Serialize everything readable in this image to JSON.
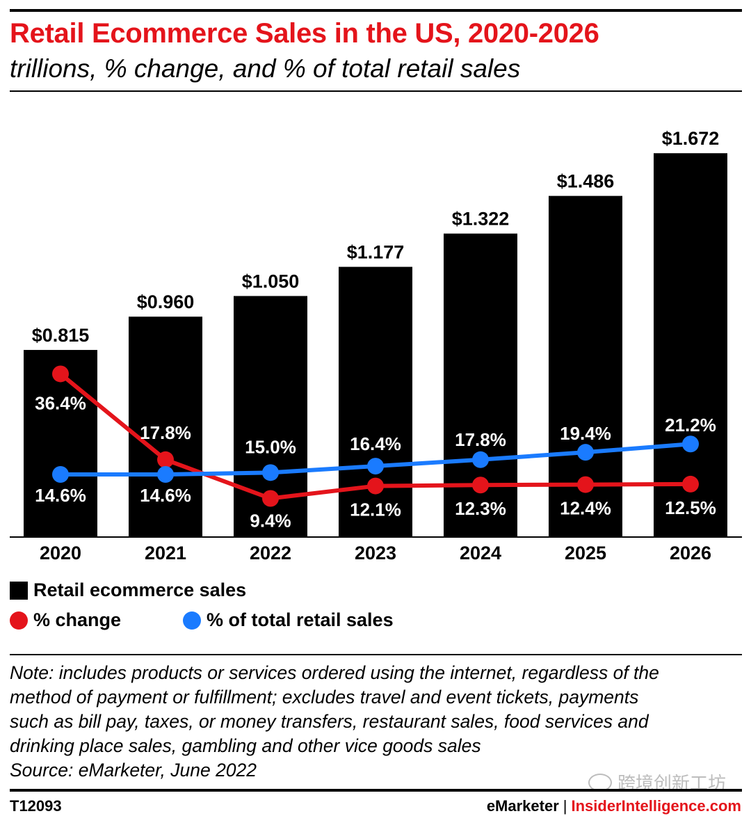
{
  "header": {
    "title": "Retail Ecommerce Sales in the US, 2020-2026",
    "subtitle": "trillions, % change, and % of total retail sales"
  },
  "chart_data": {
    "type": "bar",
    "categories": [
      "2020",
      "2021",
      "2022",
      "2023",
      "2024",
      "2025",
      "2026"
    ],
    "bar_series": {
      "name": "Retail ecommerce sales",
      "values": [
        0.815,
        0.96,
        1.05,
        1.177,
        1.322,
        1.486,
        1.672
      ],
      "labels": [
        "$0.815",
        "$0.960",
        "$1.050",
        "$1.177",
        "$1.322",
        "$1.486",
        "$1.672"
      ],
      "color": "#000000"
    },
    "line_series": [
      {
        "name": "% change",
        "values": [
          36.4,
          17.8,
          9.4,
          12.1,
          12.3,
          12.4,
          12.5
        ],
        "labels": [
          "36.4%",
          "17.8%",
          "9.4%",
          "12.1%",
          "12.3%",
          "12.4%",
          "12.5%"
        ],
        "color": "#e4141b"
      },
      {
        "name": "% of total retail sales",
        "values": [
          14.6,
          14.6,
          15.0,
          16.4,
          17.8,
          19.4,
          21.2
        ],
        "labels": [
          "14.6%",
          "14.6%",
          "15.0%",
          "16.4%",
          "17.8%",
          "19.4%",
          "21.2%"
        ],
        "color": "#1a7bff"
      }
    ],
    "ylim_bars": [
      0,
      1.8
    ],
    "grid": false,
    "legend": "bottom-left"
  },
  "legend": {
    "bars_label": "Retail ecommerce sales",
    "change_label": "% change",
    "share_label": "% of total retail sales",
    "colors": {
      "bars": "#000000",
      "change": "#e4141b",
      "share": "#1a7bff"
    }
  },
  "footer": {
    "note_lines": [
      "Note: includes products or services ordered using the internet, regardless of the",
      "method of payment or fulfillment; excludes travel and event tickets, payments",
      "such as bill pay, taxes, or money transfers, restaurant sales, food services and",
      "drinking place sales, gambling and other vice goods sales"
    ],
    "source": "Source: eMarketer, June 2022",
    "chart_id": "T12093",
    "brand_left": "eMarketer",
    "brand_sep": "|",
    "brand_right": "InsiderIntelligence.com",
    "watermark": "跨境创新工坊"
  }
}
